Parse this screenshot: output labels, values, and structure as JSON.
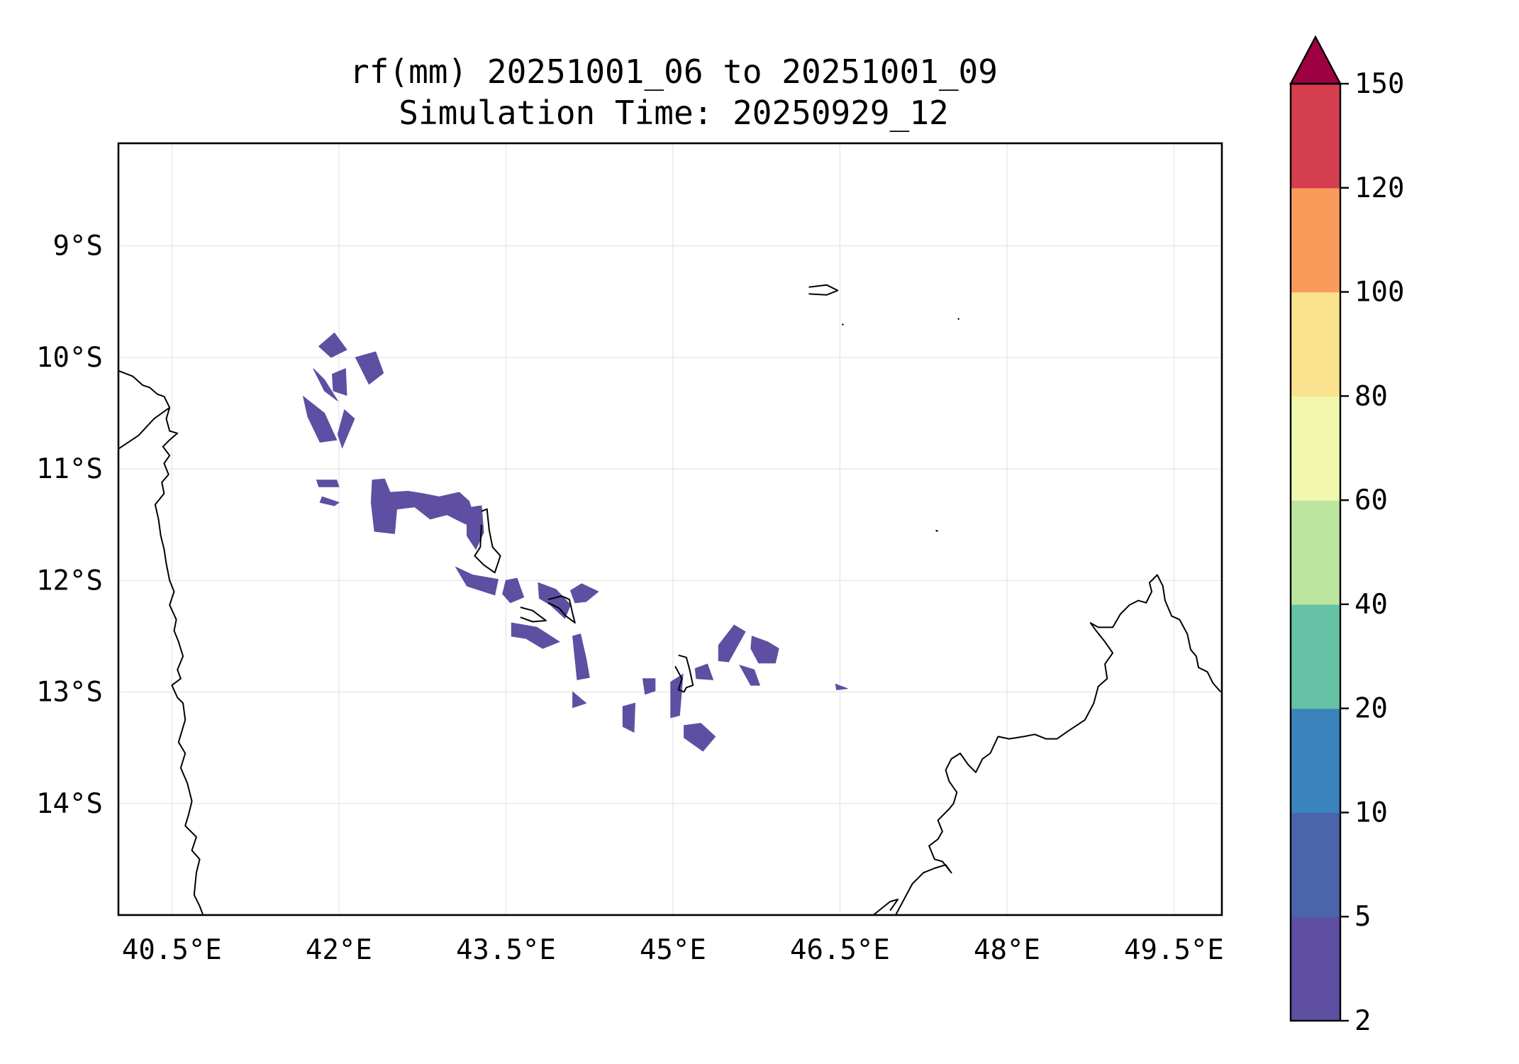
{
  "title": {
    "line1": "rf(mm) 20251001_06 to 20251001_09",
    "line2": "Simulation Time: 20250929_12"
  },
  "map": {
    "lon_range": [
      40.02,
      49.93
    ],
    "lat_range": [
      -15.0,
      -8.08
    ],
    "lon_ticks": [
      {
        "value": 40.5,
        "label": "40.5°E"
      },
      {
        "value": 42.0,
        "label": "42°E"
      },
      {
        "value": 43.5,
        "label": "43.5°E"
      },
      {
        "value": 45.0,
        "label": "45°E"
      },
      {
        "value": 46.5,
        "label": "46.5°E"
      },
      {
        "value": 48.0,
        "label": "48°E"
      },
      {
        "value": 49.5,
        "label": "49.5°E"
      }
    ],
    "lat_ticks": [
      {
        "value": -9.0,
        "label": "9°S"
      },
      {
        "value": -10.0,
        "label": "10°S"
      },
      {
        "value": -11.0,
        "label": "11°S"
      },
      {
        "value": -12.0,
        "label": "12°S"
      },
      {
        "value": -13.0,
        "label": "13°S"
      },
      {
        "value": -14.0,
        "label": "14°S"
      }
    ],
    "gridlines": true,
    "grid_color": "#e6e6e6",
    "rain_fill_color": "#5e4fa2",
    "rain_cells": [
      [
        [
          41.93,
          -10.0
        ],
        [
          42.07,
          -9.93
        ],
        [
          41.96,
          -9.78
        ],
        [
          41.82,
          -9.9
        ]
      ],
      [
        [
          42.15,
          -10.0
        ],
        [
          42.33,
          -9.95
        ],
        [
          42.4,
          -10.14
        ],
        [
          42.27,
          -10.24
        ]
      ],
      [
        [
          41.77,
          -10.1
        ],
        [
          41.87,
          -10.2
        ],
        [
          41.99,
          -10.39
        ],
        [
          41.87,
          -10.3
        ]
      ],
      [
        [
          41.94,
          -10.15
        ],
        [
          42.06,
          -10.1
        ],
        [
          42.07,
          -10.34
        ],
        [
          41.95,
          -10.3
        ]
      ],
      [
        [
          41.68,
          -10.35
        ],
        [
          41.87,
          -10.5
        ],
        [
          41.98,
          -10.74
        ],
        [
          41.83,
          -10.76
        ],
        [
          41.72,
          -10.53
        ]
      ],
      [
        [
          42.05,
          -10.47
        ],
        [
          42.14,
          -10.55
        ],
        [
          42.03,
          -10.81
        ],
        [
          41.99,
          -10.69
        ]
      ],
      [
        [
          41.8,
          -11.1
        ],
        [
          41.98,
          -11.1
        ],
        [
          42.0,
          -11.16
        ],
        [
          41.82,
          -11.16
        ]
      ],
      [
        [
          41.85,
          -11.25
        ],
        [
          42.0,
          -11.3
        ],
        [
          41.96,
          -11.33
        ],
        [
          41.83,
          -11.3
        ]
      ],
      [
        [
          42.3,
          -11.1
        ],
        [
          42.41,
          -11.09
        ],
        [
          42.46,
          -11.21
        ],
        [
          42.62,
          -11.2
        ],
        [
          42.75,
          -11.22
        ],
        [
          42.9,
          -11.25
        ],
        [
          43.08,
          -11.21
        ],
        [
          43.17,
          -11.29
        ],
        [
          43.24,
          -11.52
        ],
        [
          43.13,
          -11.49
        ],
        [
          42.97,
          -11.41
        ],
        [
          42.82,
          -11.45
        ],
        [
          42.68,
          -11.34
        ],
        [
          42.52,
          -11.36
        ],
        [
          42.5,
          -11.58
        ],
        [
          42.32,
          -11.56
        ],
        [
          42.29,
          -11.3
        ]
      ],
      [
        [
          43.15,
          -11.35
        ],
        [
          43.28,
          -11.33
        ],
        [
          43.3,
          -11.57
        ],
        [
          43.23,
          -11.72
        ],
        [
          43.15,
          -11.6
        ]
      ],
      [
        [
          43.05,
          -11.88
        ],
        [
          43.2,
          -11.95
        ],
        [
          43.43,
          -11.99
        ],
        [
          43.4,
          -12.13
        ],
        [
          43.15,
          -12.05
        ]
      ],
      [
        [
          43.5,
          -12.0
        ],
        [
          43.6,
          -11.98
        ],
        [
          43.66,
          -12.15
        ],
        [
          43.54,
          -12.2
        ],
        [
          43.47,
          -12.12
        ]
      ],
      [
        [
          43.79,
          -12.02
        ],
        [
          43.95,
          -12.08
        ],
        [
          44.08,
          -12.22
        ],
        [
          44.03,
          -12.34
        ],
        [
          43.9,
          -12.22
        ],
        [
          43.8,
          -12.16
        ]
      ],
      [
        [
          43.55,
          -12.38
        ],
        [
          43.78,
          -12.42
        ],
        [
          43.98,
          -12.55
        ],
        [
          43.83,
          -12.61
        ],
        [
          43.68,
          -12.52
        ],
        [
          43.55,
          -12.5
        ]
      ],
      [
        [
          44.08,
          -12.09
        ],
        [
          44.18,
          -12.03
        ],
        [
          44.33,
          -12.1
        ],
        [
          44.22,
          -12.19
        ],
        [
          44.12,
          -12.2
        ]
      ],
      [
        [
          44.1,
          -12.5
        ],
        [
          44.17,
          -12.48
        ],
        [
          44.22,
          -12.7
        ],
        [
          44.25,
          -12.87
        ],
        [
          44.14,
          -12.89
        ]
      ],
      [
        [
          44.1,
          -13.0
        ],
        [
          44.22,
          -13.1
        ],
        [
          44.1,
          -13.14
        ]
      ],
      [
        [
          44.73,
          -12.88
        ],
        [
          44.84,
          -12.88
        ],
        [
          44.84,
          -12.99
        ],
        [
          44.75,
          -13.02
        ]
      ],
      [
        [
          44.98,
          -12.91
        ],
        [
          45.09,
          -12.84
        ],
        [
          45.06,
          -13.21
        ],
        [
          44.98,
          -13.23
        ]
      ],
      [
        [
          45.1,
          -13.3
        ],
        [
          45.25,
          -13.28
        ],
        [
          45.38,
          -13.4
        ],
        [
          45.27,
          -13.53
        ],
        [
          45.1,
          -13.41
        ]
      ],
      [
        [
          44.55,
          -13.13
        ],
        [
          44.66,
          -13.1
        ],
        [
          44.65,
          -13.36
        ],
        [
          44.55,
          -13.31
        ]
      ],
      [
        [
          45.2,
          -12.79
        ],
        [
          45.31,
          -12.75
        ],
        [
          45.36,
          -12.89
        ],
        [
          45.21,
          -12.88
        ]
      ],
      [
        [
          45.41,
          -12.58
        ],
        [
          45.55,
          -12.4
        ],
        [
          45.65,
          -12.46
        ],
        [
          45.5,
          -12.73
        ],
        [
          45.41,
          -12.72
        ]
      ],
      [
        [
          45.71,
          -12.5
        ],
        [
          45.85,
          -12.55
        ],
        [
          45.95,
          -12.61
        ],
        [
          45.92,
          -12.74
        ],
        [
          45.77,
          -12.74
        ],
        [
          45.7,
          -12.61
        ]
      ],
      [
        [
          45.6,
          -12.76
        ],
        [
          45.73,
          -12.8
        ],
        [
          45.78,
          -12.94
        ],
        [
          45.7,
          -12.94
        ]
      ],
      [
        [
          46.46,
          -12.93
        ],
        [
          46.57,
          -12.97
        ],
        [
          46.47,
          -12.98
        ]
      ]
    ],
    "coastline_color": "#000000",
    "coastlines": [
      [
        [
          40.02,
          -10.12
        ],
        [
          40.15,
          -10.17
        ],
        [
          40.24,
          -10.25
        ],
        [
          40.3,
          -10.27
        ],
        [
          40.37,
          -10.33
        ],
        [
          40.43,
          -10.35
        ],
        [
          40.48,
          -10.45
        ],
        [
          40.45,
          -10.55
        ],
        [
          40.48,
          -10.66
        ],
        [
          40.55,
          -10.68
        ],
        [
          40.48,
          -10.74
        ],
        [
          40.42,
          -10.8
        ],
        [
          40.48,
          -10.88
        ],
        [
          40.43,
          -10.95
        ],
        [
          40.47,
          -11.05
        ],
        [
          40.41,
          -11.12
        ],
        [
          40.43,
          -11.22
        ],
        [
          40.35,
          -11.32
        ],
        [
          40.38,
          -11.45
        ],
        [
          40.4,
          -11.6
        ],
        [
          40.43,
          -11.72
        ],
        [
          40.45,
          -11.85
        ],
        [
          40.48,
          -12.0
        ],
        [
          40.52,
          -12.1
        ],
        [
          40.48,
          -12.22
        ],
        [
          40.54,
          -12.35
        ],
        [
          40.52,
          -12.45
        ],
        [
          40.56,
          -12.55
        ],
        [
          40.6,
          -12.68
        ],
        [
          40.55,
          -12.8
        ],
        [
          40.58,
          -12.88
        ],
        [
          40.5,
          -12.94
        ],
        [
          40.55,
          -13.05
        ],
        [
          40.6,
          -13.1
        ],
        [
          40.62,
          -13.25
        ],
        [
          40.56,
          -13.45
        ],
        [
          40.62,
          -13.55
        ],
        [
          40.58,
          -13.68
        ],
        [
          40.64,
          -13.82
        ],
        [
          40.68,
          -13.98
        ],
        [
          40.65,
          -14.1
        ],
        [
          40.62,
          -14.2
        ],
        [
          40.72,
          -14.3
        ],
        [
          40.68,
          -14.42
        ],
        [
          40.75,
          -14.5
        ],
        [
          40.72,
          -14.62
        ],
        [
          40.7,
          -14.82
        ],
        [
          40.75,
          -14.92
        ],
        [
          40.78,
          -15.0
        ]
      ],
      [
        [
          40.02,
          -10.82
        ],
        [
          40.2,
          -10.7
        ],
        [
          40.34,
          -10.55
        ],
        [
          40.48,
          -10.45
        ]
      ],
      [
        [
          46.8,
          -15.0
        ],
        [
          46.95,
          -14.88
        ],
        [
          47.02,
          -14.86
        ],
        [
          46.95,
          -14.96
        ]
      ],
      [
        [
          47.0,
          -15.0
        ],
        [
          47.15,
          -14.72
        ],
        [
          47.25,
          -14.62
        ],
        [
          47.35,
          -14.58
        ],
        [
          47.45,
          -14.55
        ],
        [
          47.5,
          -14.62
        ],
        [
          47.42,
          -14.52
        ],
        [
          47.35,
          -14.5
        ],
        [
          47.3,
          -14.38
        ],
        [
          47.38,
          -14.32
        ],
        [
          47.42,
          -14.25
        ],
        [
          47.38,
          -14.15
        ],
        [
          47.48,
          -14.05
        ],
        [
          47.52,
          -14.0
        ],
        [
          47.55,
          -13.9
        ],
        [
          47.48,
          -13.8
        ],
        [
          47.45,
          -13.7
        ],
        [
          47.5,
          -13.6
        ],
        [
          47.58,
          -13.55
        ],
        [
          47.65,
          -13.65
        ],
        [
          47.72,
          -13.72
        ],
        [
          47.78,
          -13.6
        ],
        [
          47.85,
          -13.55
        ],
        [
          47.92,
          -13.4
        ],
        [
          48.02,
          -13.42
        ],
        [
          48.15,
          -13.4
        ],
        [
          48.25,
          -13.38
        ],
        [
          48.35,
          -13.42
        ],
        [
          48.45,
          -13.42
        ],
        [
          48.55,
          -13.35
        ],
        [
          48.7,
          -13.25
        ],
        [
          48.78,
          -13.1
        ],
        [
          48.82,
          -12.95
        ],
        [
          48.9,
          -12.88
        ],
        [
          48.88,
          -12.75
        ],
        [
          48.95,
          -12.65
        ],
        [
          48.88,
          -12.55
        ],
        [
          48.8,
          -12.45
        ],
        [
          48.75,
          -12.38
        ],
        [
          48.82,
          -12.42
        ],
        [
          48.95,
          -12.42
        ],
        [
          49.02,
          -12.3
        ],
        [
          49.1,
          -12.22
        ],
        [
          49.18,
          -12.18
        ],
        [
          49.25,
          -12.2
        ],
        [
          49.3,
          -12.1
        ],
        [
          49.28,
          -12.02
        ],
        [
          49.35,
          -11.95
        ],
        [
          49.4,
          -12.05
        ],
        [
          49.42,
          -12.18
        ],
        [
          49.48,
          -12.32
        ],
        [
          49.55,
          -12.35
        ],
        [
          49.62,
          -12.48
        ],
        [
          49.65,
          -12.62
        ],
        [
          49.7,
          -12.68
        ],
        [
          49.72,
          -12.78
        ],
        [
          49.8,
          -12.82
        ],
        [
          49.85,
          -12.92
        ],
        [
          49.92,
          -13.0
        ]
      ],
      [
        [
          43.88,
          -12.17
        ],
        [
          44.0,
          -12.14
        ],
        [
          44.07,
          -12.17
        ],
        [
          44.1,
          -12.3
        ],
        [
          44.12,
          -12.38
        ],
        [
          44.04,
          -12.32
        ],
        [
          43.98,
          -12.25
        ],
        [
          43.88,
          -12.2
        ]
      ],
      [
        [
          43.28,
          -11.38
        ],
        [
          43.33,
          -11.36
        ],
        [
          43.35,
          -11.55
        ],
        [
          43.38,
          -11.7
        ],
        [
          43.45,
          -11.78
        ],
        [
          43.4,
          -11.93
        ],
        [
          43.3,
          -11.86
        ],
        [
          43.22,
          -11.78
        ],
        [
          43.27,
          -11.7
        ],
        [
          43.28,
          -11.5
        ]
      ],
      [
        [
          43.63,
          -12.24
        ],
        [
          43.74,
          -12.27
        ],
        [
          43.86,
          -12.36
        ],
        [
          43.74,
          -12.37
        ],
        [
          43.63,
          -12.33
        ]
      ],
      [
        [
          45.05,
          -12.67
        ],
        [
          45.12,
          -12.69
        ],
        [
          45.15,
          -12.8
        ],
        [
          45.18,
          -12.94
        ],
        [
          45.12,
          -12.96
        ],
        [
          45.1,
          -13.0
        ],
        [
          45.05,
          -12.98
        ],
        [
          45.08,
          -12.88
        ],
        [
          45.02,
          -12.77
        ]
      ],
      [
        [
          46.22,
          -9.37
        ],
        [
          46.38,
          -9.35
        ],
        [
          46.48,
          -9.4
        ],
        [
          46.38,
          -9.44
        ],
        [
          46.22,
          -9.43
        ]
      ],
      [
        [
          46.52,
          -9.7
        ],
        [
          46.53,
          -9.71
        ]
      ],
      [
        [
          47.56,
          -9.65
        ],
        [
          47.57,
          -9.66
        ]
      ],
      [
        [
          47.36,
          -11.55
        ],
        [
          47.38,
          -11.56
        ]
      ]
    ]
  },
  "colorbar": {
    "extend": "max",
    "extend_color": "#9e0142",
    "levels": [
      "2",
      "5",
      "10",
      "20",
      "40",
      "60",
      "80",
      "100",
      "120",
      "150"
    ],
    "colors": [
      "#5e4fa2",
      "#4c64ab",
      "#3a83bc",
      "#66c2a5",
      "#bce59f",
      "#f1f8ae",
      "#fbe28e",
      "#f99c5b",
      "#d53e4f"
    ]
  }
}
